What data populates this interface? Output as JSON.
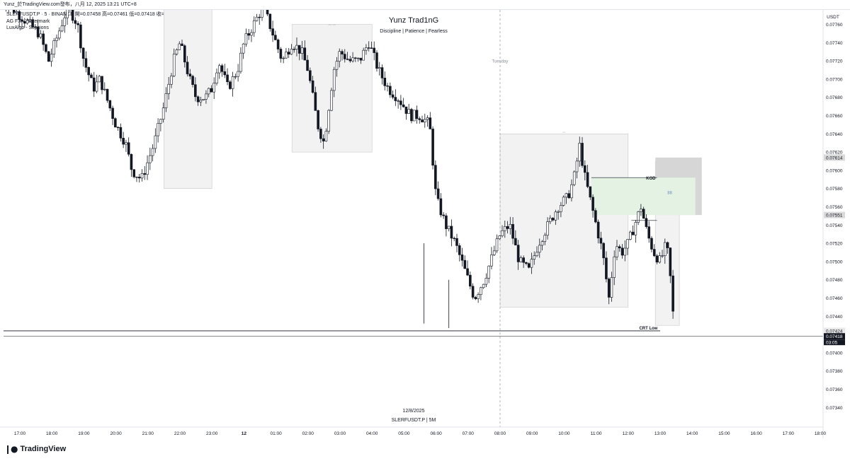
{
  "header": {
    "title": "Yunz_於TradingView.com發布，八月 12, 2025 13:21 UTC+8"
  },
  "legend": {
    "symbol_line": "SLERFUSDT.P · 5 · BINANCE  開=0.07458  高=0.07461  低=0.07418  收=0.07418",
    "indicator_1": "AG FX - Watermark",
    "indicator_2": "LuxAlgo - Sessions"
  },
  "watermark": {
    "title": "Yunz Trad1nG",
    "subtitle": "Discipline | Patience | Fearless",
    "date": "12/8/2025",
    "symbol": "SLERFUSDT.P | 5M"
  },
  "annotations": {
    "day_label": "Tuesday",
    "kod": "KOD",
    "crt_low": "CRT Low",
    "session_a": "== ==",
    "session_b": "==",
    "position_ratio": "88"
  },
  "price_axis": {
    "currency": "USDT",
    "current_countdown": "03:05"
  },
  "brand": {
    "name": "TradingView",
    "logo": "tradingview-logo-icon"
  },
  "colors": {
    "up": "#131722",
    "down": "#131722",
    "up_body": "#ffffff",
    "session_box": "#f2f2f2",
    "kod_zone": "#e3f2e3",
    "sl_zone": "#d6d6d6"
  },
  "chart_data": {
    "type": "candlestick",
    "symbol": "SLERFUSDT.P",
    "interval": "5",
    "exchange": "BINANCE",
    "ohlc_last": {
      "open": 0.07458,
      "high": 0.07461,
      "low": 0.07418,
      "close": 0.07418
    },
    "ylim": [
      0.0731,
      0.0777
    ],
    "y_ticks": [
      0.0732,
      0.0734,
      0.0736,
      0.0738,
      0.074,
      0.0742,
      0.0744,
      0.0746,
      0.0748,
      0.075,
      0.0752,
      0.0754,
      0.0756,
      0.0758,
      0.076,
      0.0762,
      0.0764,
      0.0766,
      0.0768,
      0.077,
      0.0772,
      0.0774,
      0.0776
    ],
    "y_tick_labels": [
      "0.07320",
      "0.07340",
      "0.07360",
      "0.07380",
      "0.07400",
      "0.07420",
      "0.07440",
      "0.07460",
      "0.07480",
      "0.07500",
      "0.07520",
      "0.07540",
      "0.07560",
      "0.07580",
      "0.07600",
      "0.07620",
      "0.07640",
      "0.07660",
      "0.07680",
      "0.07700",
      "0.07720",
      "0.07740",
      "0.07760"
    ],
    "price_labels": [
      {
        "value": 0.07614,
        "label": "0.07614"
      },
      {
        "value": 0.07551,
        "label": "0.07551"
      },
      {
        "value": 0.07424,
        "label": "0.07424"
      },
      {
        "value": 0.07418,
        "label": "0.07418"
      }
    ],
    "x_tick_labels": [
      "17:00",
      "18:00",
      "19:00",
      "20:00",
      "21:00",
      "22:00",
      "23:00",
      "12",
      "01:00",
      "02:00",
      "03:00",
      "04:00",
      "05:00",
      "06:00",
      "07:00",
      "08:00",
      "09:00",
      "10:00",
      "11:00",
      "12:00",
      "13:00",
      "14:00",
      "15:00",
      "16:00",
      "17:00",
      "18:00"
    ],
    "x_ticks_hours": [
      17,
      18,
      19,
      20,
      21,
      22,
      23,
      24,
      25,
      26,
      27,
      28,
      29,
      30,
      31,
      32,
      33,
      34,
      35,
      36,
      37,
      38,
      39,
      40,
      41,
      42
    ],
    "candle_path_hours": [
      16.4,
      16.7,
      17.0,
      17.3,
      17.6,
      17.9,
      18.2,
      18.5,
      18.8,
      19.0,
      19.3,
      19.5,
      19.8,
      20.0,
      20.3,
      20.5,
      20.8,
      21.0,
      21.2,
      21.5,
      21.8,
      22.0,
      22.3,
      22.5,
      22.8,
      23.0,
      23.2,
      23.5,
      23.8,
      24.0,
      24.3,
      24.6,
      24.9,
      25.2,
      25.5,
      25.8,
      26.0,
      26.3,
      26.5,
      26.8,
      27.0,
      27.3,
      27.6,
      27.9,
      28.2,
      28.5,
      28.8,
      29.0,
      29.2,
      29.5,
      29.8,
      30.0,
      30.3,
      30.6,
      30.9,
      31.2,
      31.5,
      31.8,
      32.0,
      32.3,
      32.6,
      32.9,
      33.2,
      33.5,
      33.8,
      34.1,
      34.3,
      34.5,
      34.6,
      34.8,
      35.0,
      35.2,
      35.4,
      35.6,
      35.8,
      36.0,
      36.2,
      36.4,
      36.6,
      36.8,
      37.0,
      37.2,
      37.3,
      37.45
    ],
    "candle_path_prices": [
      0.0779,
      0.0778,
      0.0777,
      0.0776,
      0.0775,
      0.0772,
      0.0775,
      0.0778,
      0.0776,
      0.0772,
      0.0769,
      0.077,
      0.0767,
      0.0765,
      0.0763,
      0.076,
      0.0759,
      0.0761,
      0.0763,
      0.0767,
      0.0772,
      0.0774,
      0.077,
      0.0768,
      0.0768,
      0.0769,
      0.0772,
      0.0769,
      0.0771,
      0.0774,
      0.0776,
      0.0778,
      0.0775,
      0.0772,
      0.0774,
      0.0773,
      0.0771,
      0.0765,
      0.0763,
      0.0771,
      0.0773,
      0.0772,
      0.0772,
      0.0774,
      0.0771,
      0.0769,
      0.0768,
      0.0767,
      0.0766,
      0.0766,
      0.0765,
      0.0757,
      0.0754,
      0.0752,
      0.0749,
      0.0746,
      0.0748,
      0.0751,
      0.0753,
      0.0754,
      0.075,
      0.0749,
      0.0752,
      0.0754,
      0.0756,
      0.0757,
      0.0759,
      0.0763,
      0.076,
      0.0757,
      0.0754,
      0.0751,
      0.0746,
      0.0752,
      0.0751,
      0.0752,
      0.0754,
      0.0756,
      0.0753,
      0.0751,
      0.075,
      0.0752,
      0.0749,
      0.0742
    ]
  }
}
